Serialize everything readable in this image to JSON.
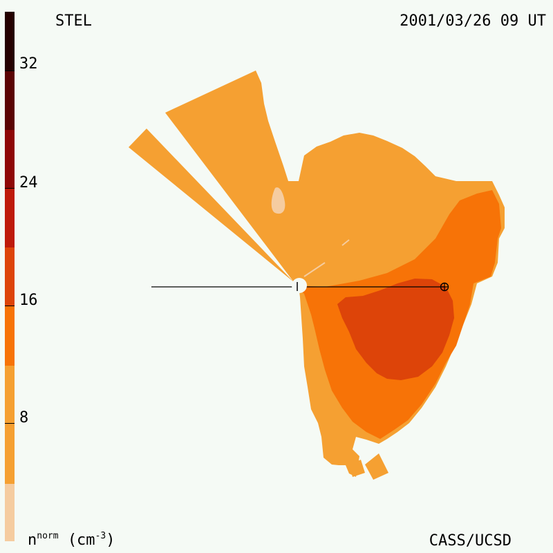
{
  "header": {
    "station": "STEL",
    "timestamp": "2001/03/26 09 UT"
  },
  "footer": {
    "credit": "CASS/UCSD",
    "unit_base": "n",
    "unit_sup": "norm",
    "unit_rest": "(cm",
    "unit_exp": "-3",
    "unit_close": ")"
  },
  "colorbar": {
    "ticks": [
      "32",
      "24",
      "16",
      "8"
    ],
    "colors": [
      "#f5cca0",
      "#f5a032",
      "#f77307",
      "#dd4409",
      "#be1a0a",
      "#8e0707",
      "#5a0303",
      "#250000"
    ]
  },
  "colors": {
    "level1": "#f5cca0",
    "level2": "#f5a032",
    "level3": "#f77307",
    "level4": "#dd4409",
    "background": "#f5faf5"
  },
  "markers": {
    "sun": "sun-marker",
    "earth": "earth-icon"
  }
}
